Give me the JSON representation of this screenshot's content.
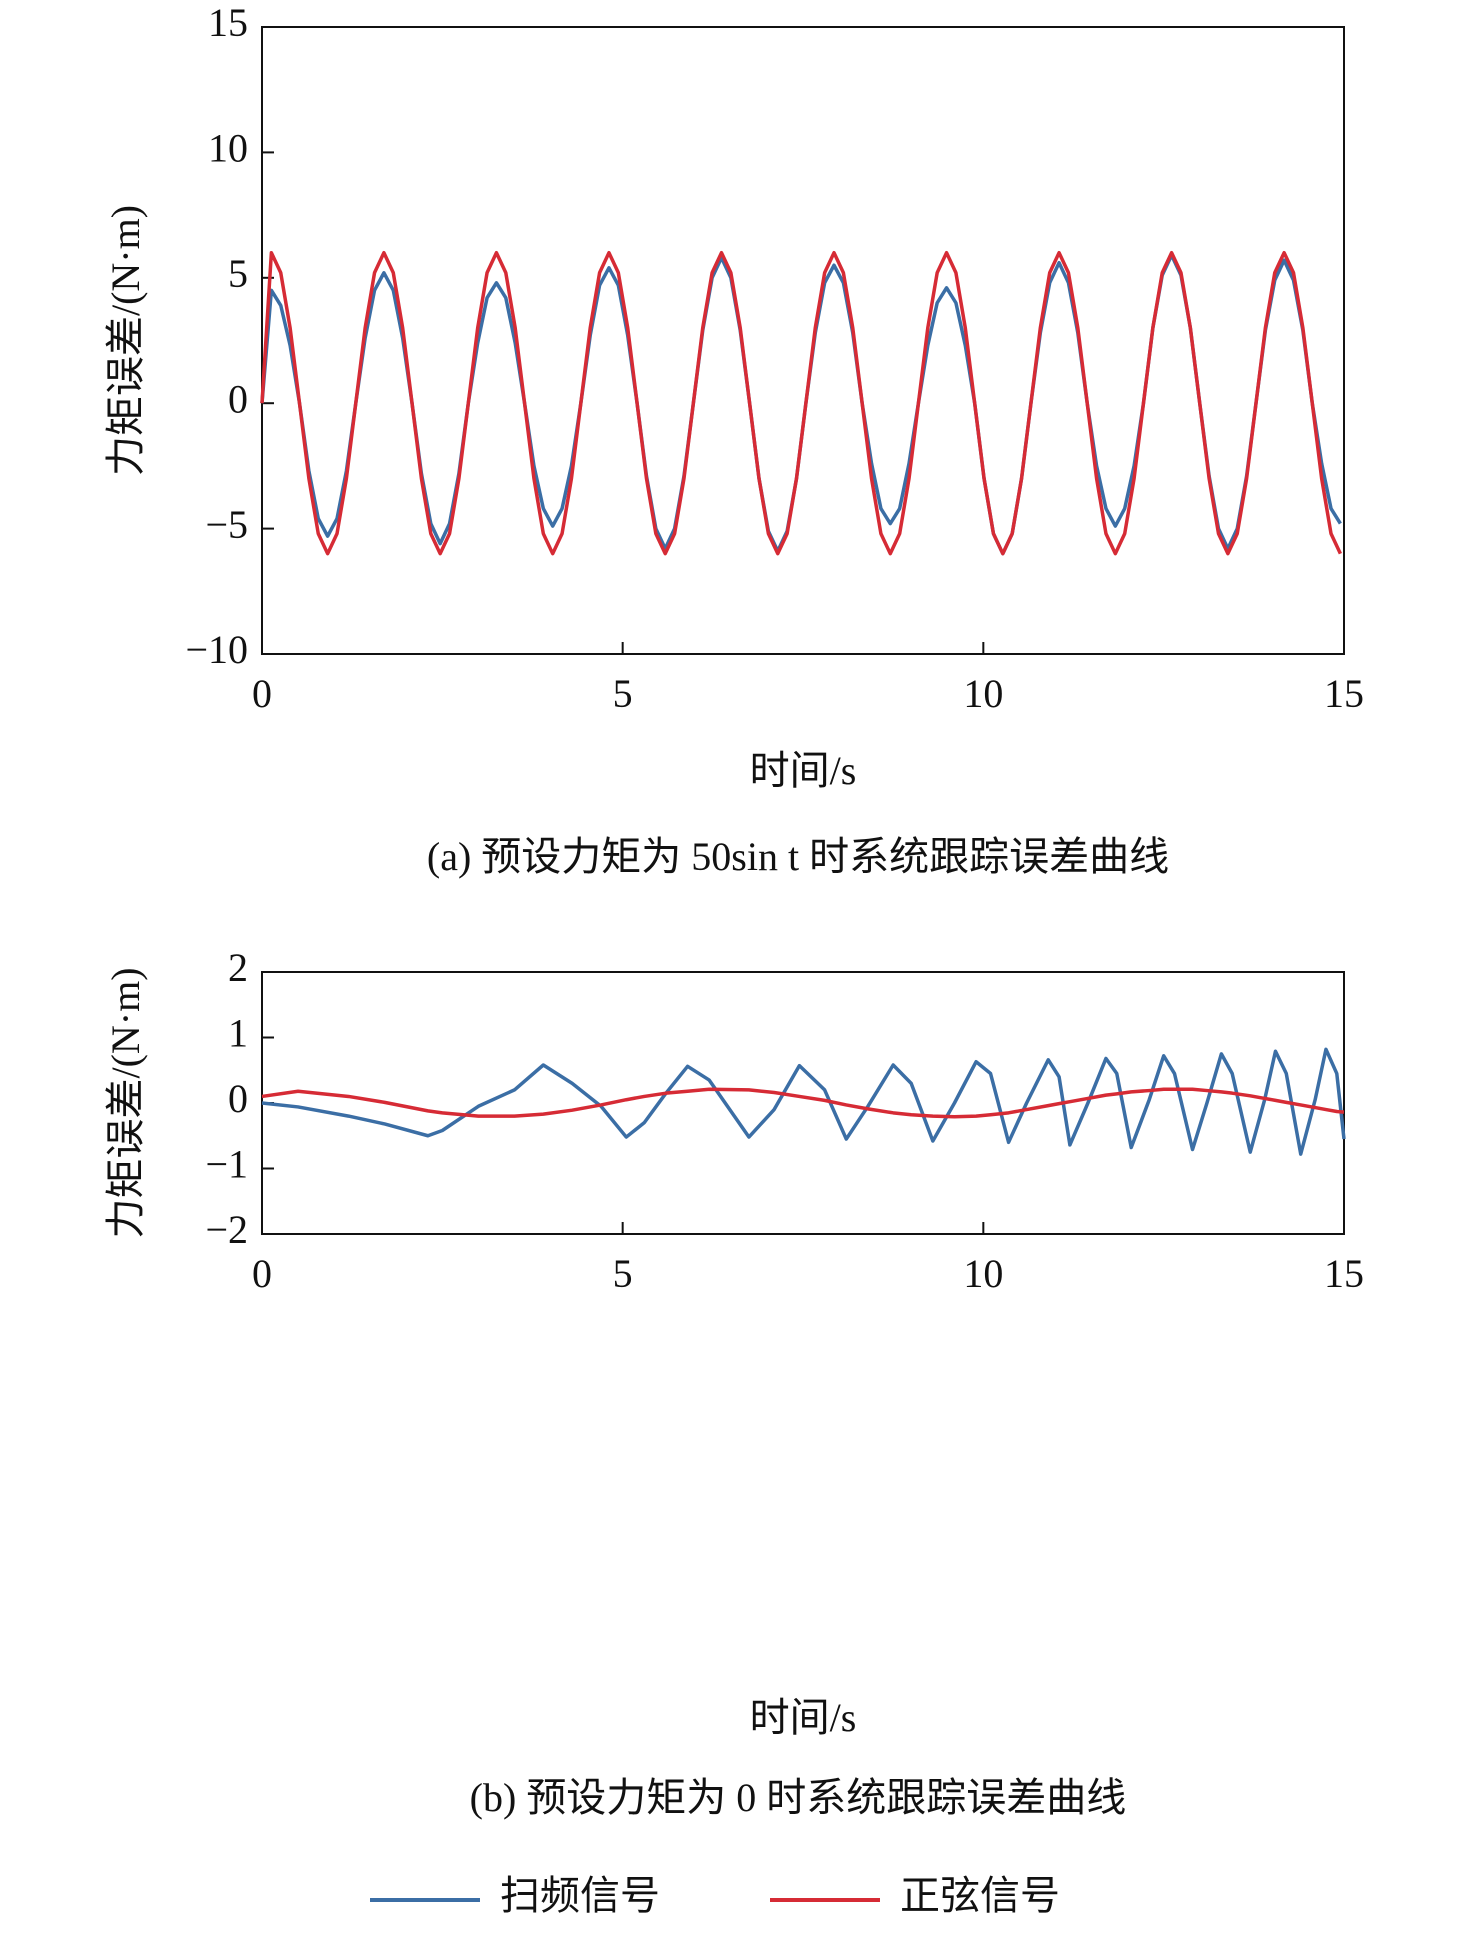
{
  "chart_data": [
    {
      "type": "line",
      "ylabel": "力矩误差/(N·m)",
      "xlabel": "时间/s",
      "caption": "(a) 预设力矩为 50sin t 时系统跟踪误差曲线",
      "xlim": [
        0,
        15
      ],
      "xticks": [
        0,
        5,
        10,
        15
      ],
      "ylim": [
        -10,
        15
      ],
      "yticks": [
        {
          "value": -10,
          "label": "−10"
        },
        {
          "value": -5,
          "label": "−5"
        },
        0,
        5,
        10,
        15
      ],
      "x": [
        0,
        0.13,
        0.26,
        0.39,
        0.52,
        0.65,
        0.78,
        0.91,
        1.04,
        1.17,
        1.3,
        1.43,
        1.56,
        1.69,
        1.82,
        1.95,
        2.08,
        2.21,
        2.34,
        2.47,
        2.6,
        2.73,
        2.86,
        2.99,
        3.12,
        3.25,
        3.38,
        3.51,
        3.64,
        3.77,
        3.9,
        4.03,
        4.16,
        4.29,
        4.42,
        4.55,
        4.68,
        4.81,
        4.94,
        5.07,
        5.2,
        5.33,
        5.46,
        5.59,
        5.72,
        5.85,
        5.98,
        6.11,
        6.24,
        6.37,
        6.5,
        6.63,
        6.76,
        6.89,
        7.02,
        7.15,
        7.28,
        7.41,
        7.54,
        7.67,
        7.8,
        7.93,
        8.06,
        8.19,
        8.32,
        8.45,
        8.58,
        8.71,
        8.84,
        8.97,
        9.1,
        9.23,
        9.36,
        9.49,
        9.62,
        9.75,
        9.88,
        10.01,
        10.14,
        10.27,
        10.4,
        10.53,
        10.66,
        10.79,
        10.92,
        11.05,
        11.18,
        11.31,
        11.44,
        11.57,
        11.7,
        11.83,
        11.96,
        12.09,
        12.22,
        12.35,
        12.48,
        12.61,
        12.74,
        12.87,
        13,
        13.13,
        13.26,
        13.39,
        13.52,
        13.65,
        13.78,
        13.91,
        14.04,
        14.17,
        14.3,
        14.43,
        14.56,
        14.69,
        14.82,
        14.95
      ],
      "series": [
        {
          "color": "#3b6ea5",
          "values": [
            0,
            4.5,
            3.9,
            2.3,
            0,
            -2.7,
            -4.6,
            -5.3,
            -4.6,
            -2.7,
            0,
            2.6,
            4.5,
            5.2,
            4.5,
            2.6,
            0,
            -2.8,
            -4.8,
            -5.6,
            -4.8,
            -2.8,
            0,
            2.4,
            4.2,
            4.8,
            4.2,
            2.4,
            0,
            -2.5,
            -4.2,
            -4.9,
            -4.2,
            -2.5,
            0,
            2.7,
            4.7,
            5.4,
            4.7,
            2.7,
            0,
            -2.9,
            -5,
            -5.8,
            -5,
            -2.9,
            0,
            2.9,
            5,
            5.8,
            5,
            2.9,
            0,
            -3,
            -5.1,
            -5.9,
            -5.1,
            -3,
            0,
            2.8,
            4.8,
            5.5,
            4.8,
            2.8,
            0,
            -2.4,
            -4.2,
            -4.8,
            -4.2,
            -2.4,
            0,
            2.3,
            4,
            4.6,
            4,
            2.3,
            0,
            -3,
            -5.2,
            -6,
            -5.2,
            -3,
            0,
            2.8,
            4.8,
            5.6,
            4.8,
            2.8,
            0,
            -2.5,
            -4.2,
            -4.9,
            -4.2,
            -2.5,
            0,
            3,
            5.1,
            5.9,
            5.1,
            3,
            0,
            -2.9,
            -5,
            -5.8,
            -5,
            -2.9,
            0,
            2.9,
            4.9,
            5.7,
            4.9,
            2.9,
            0,
            -2.4,
            -4.2,
            -4.8
          ]
        },
        {
          "color": "#d62b35",
          "values": [
            0,
            6,
            5.2,
            3,
            0,
            -3,
            -5.2,
            -6,
            -5.2,
            -3,
            0,
            3,
            5.2,
            6,
            5.2,
            3,
            0,
            -3,
            -5.2,
            -6,
            -5.2,
            -3,
            0,
            3,
            5.2,
            6,
            5.2,
            3,
            0,
            -3,
            -5.2,
            -6,
            -5.2,
            -3,
            0,
            3,
            5.2,
            6,
            5.2,
            3,
            0,
            -3,
            -5.2,
            -6,
            -5.2,
            -3,
            0,
            3,
            5.2,
            6,
            5.2,
            3,
            0,
            -3,
            -5.2,
            -6,
            -5.2,
            -3,
            0,
            3,
            5.2,
            6,
            5.2,
            3,
            0,
            -3,
            -5.2,
            -6,
            -5.2,
            -3,
            0,
            3,
            5.2,
            6,
            5.2,
            3,
            0,
            -3,
            -5.2,
            -6,
            -5.2,
            -3,
            0,
            3,
            5.2,
            6,
            5.2,
            3,
            0,
            -3,
            -5.2,
            -6,
            -5.2,
            -3,
            0,
            3,
            5.2,
            6,
            5.2,
            3,
            0,
            -3,
            -5.2,
            -6,
            -5.2,
            -3,
            0,
            3,
            5.2,
            6,
            5.2,
            3,
            0,
            -3,
            -5.2,
            -6
          ]
        }
      ]
    },
    {
      "type": "line",
      "ylabel": "力矩误差/(N·m)",
      "xlabel": "时间/s",
      "caption": "(b) 预设力矩为 0 时系统跟踪误差曲线",
      "xlim": [
        0,
        15
      ],
      "xticks": [
        0,
        5,
        10,
        15
      ],
      "ylim": [
        -2,
        2
      ],
      "yticks": [
        {
          "value": -2,
          "label": "−2"
        },
        {
          "value": -1,
          "label": "−1"
        },
        0,
        1,
        2
      ],
      "x": [
        0,
        0.5,
        1.2,
        1.7,
        2.3,
        2.5,
        3.0,
        3.5,
        3.9,
        4.3,
        4.7,
        5.05,
        5.3,
        5.6,
        5.9,
        6.2,
        6.75,
        7.1,
        7.45,
        7.8,
        8.1,
        8.4,
        8.75,
        9.0,
        9.3,
        9.6,
        9.9,
        10.1,
        10.35,
        10.6,
        10.9,
        11.05,
        11.2,
        11.45,
        11.7,
        11.85,
        12.05,
        12.3,
        12.5,
        12.65,
        12.9,
        13.1,
        13.3,
        13.45,
        13.7,
        13.9,
        14.05,
        14.2,
        14.4,
        14.6,
        14.75,
        14.9,
        15
      ],
      "series": [
        {
          "name": "扫频信号",
          "color": "#3b6ea5",
          "values": [
            0,
            -0.06,
            -0.2,
            -0.32,
            -0.5,
            -0.42,
            -0.05,
            0.2,
            0.58,
            0.3,
            -0.05,
            -0.52,
            -0.3,
            0.15,
            0.56,
            0.35,
            -0.52,
            -0.1,
            0.57,
            0.2,
            -0.55,
            -0.05,
            0.58,
            0.3,
            -0.58,
            0,
            0.63,
            0.45,
            -0.6,
            0,
            0.66,
            0.4,
            -0.64,
            0,
            0.68,
            0.45,
            -0.68,
            0.05,
            0.72,
            0.45,
            -0.71,
            0,
            0.75,
            0.45,
            -0.75,
            0.05,
            0.79,
            0.45,
            -0.78,
            0.05,
            0.82,
            0.45,
            -0.55
          ]
        },
        {
          "name": "正弦信号",
          "color": "#d62b35",
          "values": [
            0.1,
            0.18,
            0.1,
            0.01,
            -0.12,
            -0.15,
            -0.2,
            -0.2,
            -0.17,
            -0.11,
            -0.03,
            0.05,
            0.1,
            0.15,
            0.18,
            0.21,
            0.2,
            0.16,
            0.1,
            0.04,
            -0.03,
            -0.09,
            -0.15,
            -0.18,
            -0.2,
            -0.21,
            -0.2,
            -0.18,
            -0.15,
            -0.1,
            -0.04,
            -0.01,
            0.02,
            0.07,
            0.12,
            0.14,
            0.17,
            0.19,
            0.21,
            0.21,
            0.21,
            0.19,
            0.17,
            0.15,
            0.11,
            0.07,
            0.04,
            0.01,
            -0.03,
            -0.07,
            -0.1,
            -0.13,
            -0.14
          ]
        }
      ]
    }
  ]
}
